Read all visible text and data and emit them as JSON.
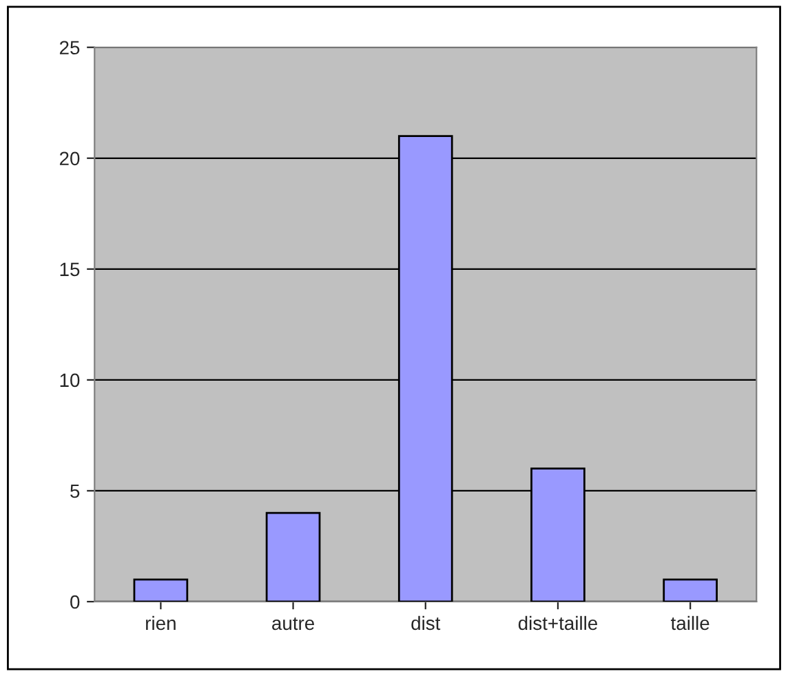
{
  "chart_data": {
    "type": "bar",
    "categories": [
      "rien",
      "autre",
      "dist",
      "dist+taille",
      "taille"
    ],
    "values": [
      1,
      4,
      21,
      6,
      1
    ],
    "color": "#9999ff",
    "ylim": [
      0,
      25
    ],
    "yticks": [
      0,
      5,
      10,
      15,
      20,
      25
    ],
    "grid": "y"
  }
}
